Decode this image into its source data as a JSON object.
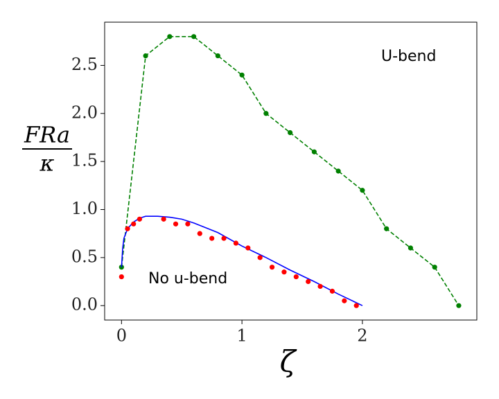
{
  "chart_data": {
    "type": "line",
    "xlabel": "ζ",
    "ylabel": {
      "numerator": "FRa",
      "denominator": "κ"
    },
    "annotations": [
      "U-bend",
      "No u-bend"
    ],
    "xlim": [
      -0.14,
      2.95
    ],
    "ylim": [
      -0.15,
      2.95
    ],
    "xticks": [
      0,
      1,
      2
    ],
    "yticks": [
      {
        "value": 0,
        "label": "0.0"
      },
      0.5,
      {
        "value": 1,
        "label": "1.0"
      },
      1.5,
      {
        "value": 2,
        "label": "2.0"
      },
      2.5
    ],
    "grid": false,
    "series": [
      {
        "color": "#008000",
        "line": "dashed",
        "markers": true,
        "x": [
          0,
          0.2,
          0.4,
          0.6,
          0.8,
          1.0,
          1.2,
          1.4,
          1.6,
          1.8,
          2.0,
          2.2,
          2.4,
          2.6,
          2.8
        ],
        "values": [
          0.4,
          2.6,
          2.8,
          2.8,
          2.6,
          2.4,
          2.0,
          1.8,
          1.6,
          1.4,
          1.2,
          0.8,
          0.6,
          0.4,
          0.0
        ]
      },
      {
        "color": "#0000ff",
        "line": "solid",
        "markers": false,
        "x": [
          0,
          0.01,
          0.02,
          0.05,
          0.1,
          0.15,
          0.2,
          0.3,
          0.4,
          0.5,
          0.6,
          0.8,
          1.0,
          1.2,
          1.4,
          1.6,
          1.8,
          2.0
        ],
        "values": [
          0.4,
          0.6,
          0.7,
          0.8,
          0.87,
          0.91,
          0.93,
          0.93,
          0.92,
          0.9,
          0.86,
          0.76,
          0.62,
          0.5,
          0.37,
          0.25,
          0.12,
          0.0
        ]
      },
      {
        "color": "#ff0000",
        "line": "none",
        "markers": true,
        "x": [
          0,
          0.05,
          0.1,
          0.15,
          0.35,
          0.45,
          0.55,
          0.65,
          0.75,
          0.85,
          0.95,
          1.05,
          1.15,
          1.25,
          1.35,
          1.45,
          1.55,
          1.65,
          1.75,
          1.85,
          1.95
        ],
        "values": [
          0.3,
          0.8,
          0.85,
          0.9,
          0.9,
          0.85,
          0.85,
          0.75,
          0.7,
          0.7,
          0.65,
          0.6,
          0.5,
          0.4,
          0.35,
          0.3,
          0.25,
          0.2,
          0.15,
          0.05,
          0.0
        ]
      }
    ]
  }
}
